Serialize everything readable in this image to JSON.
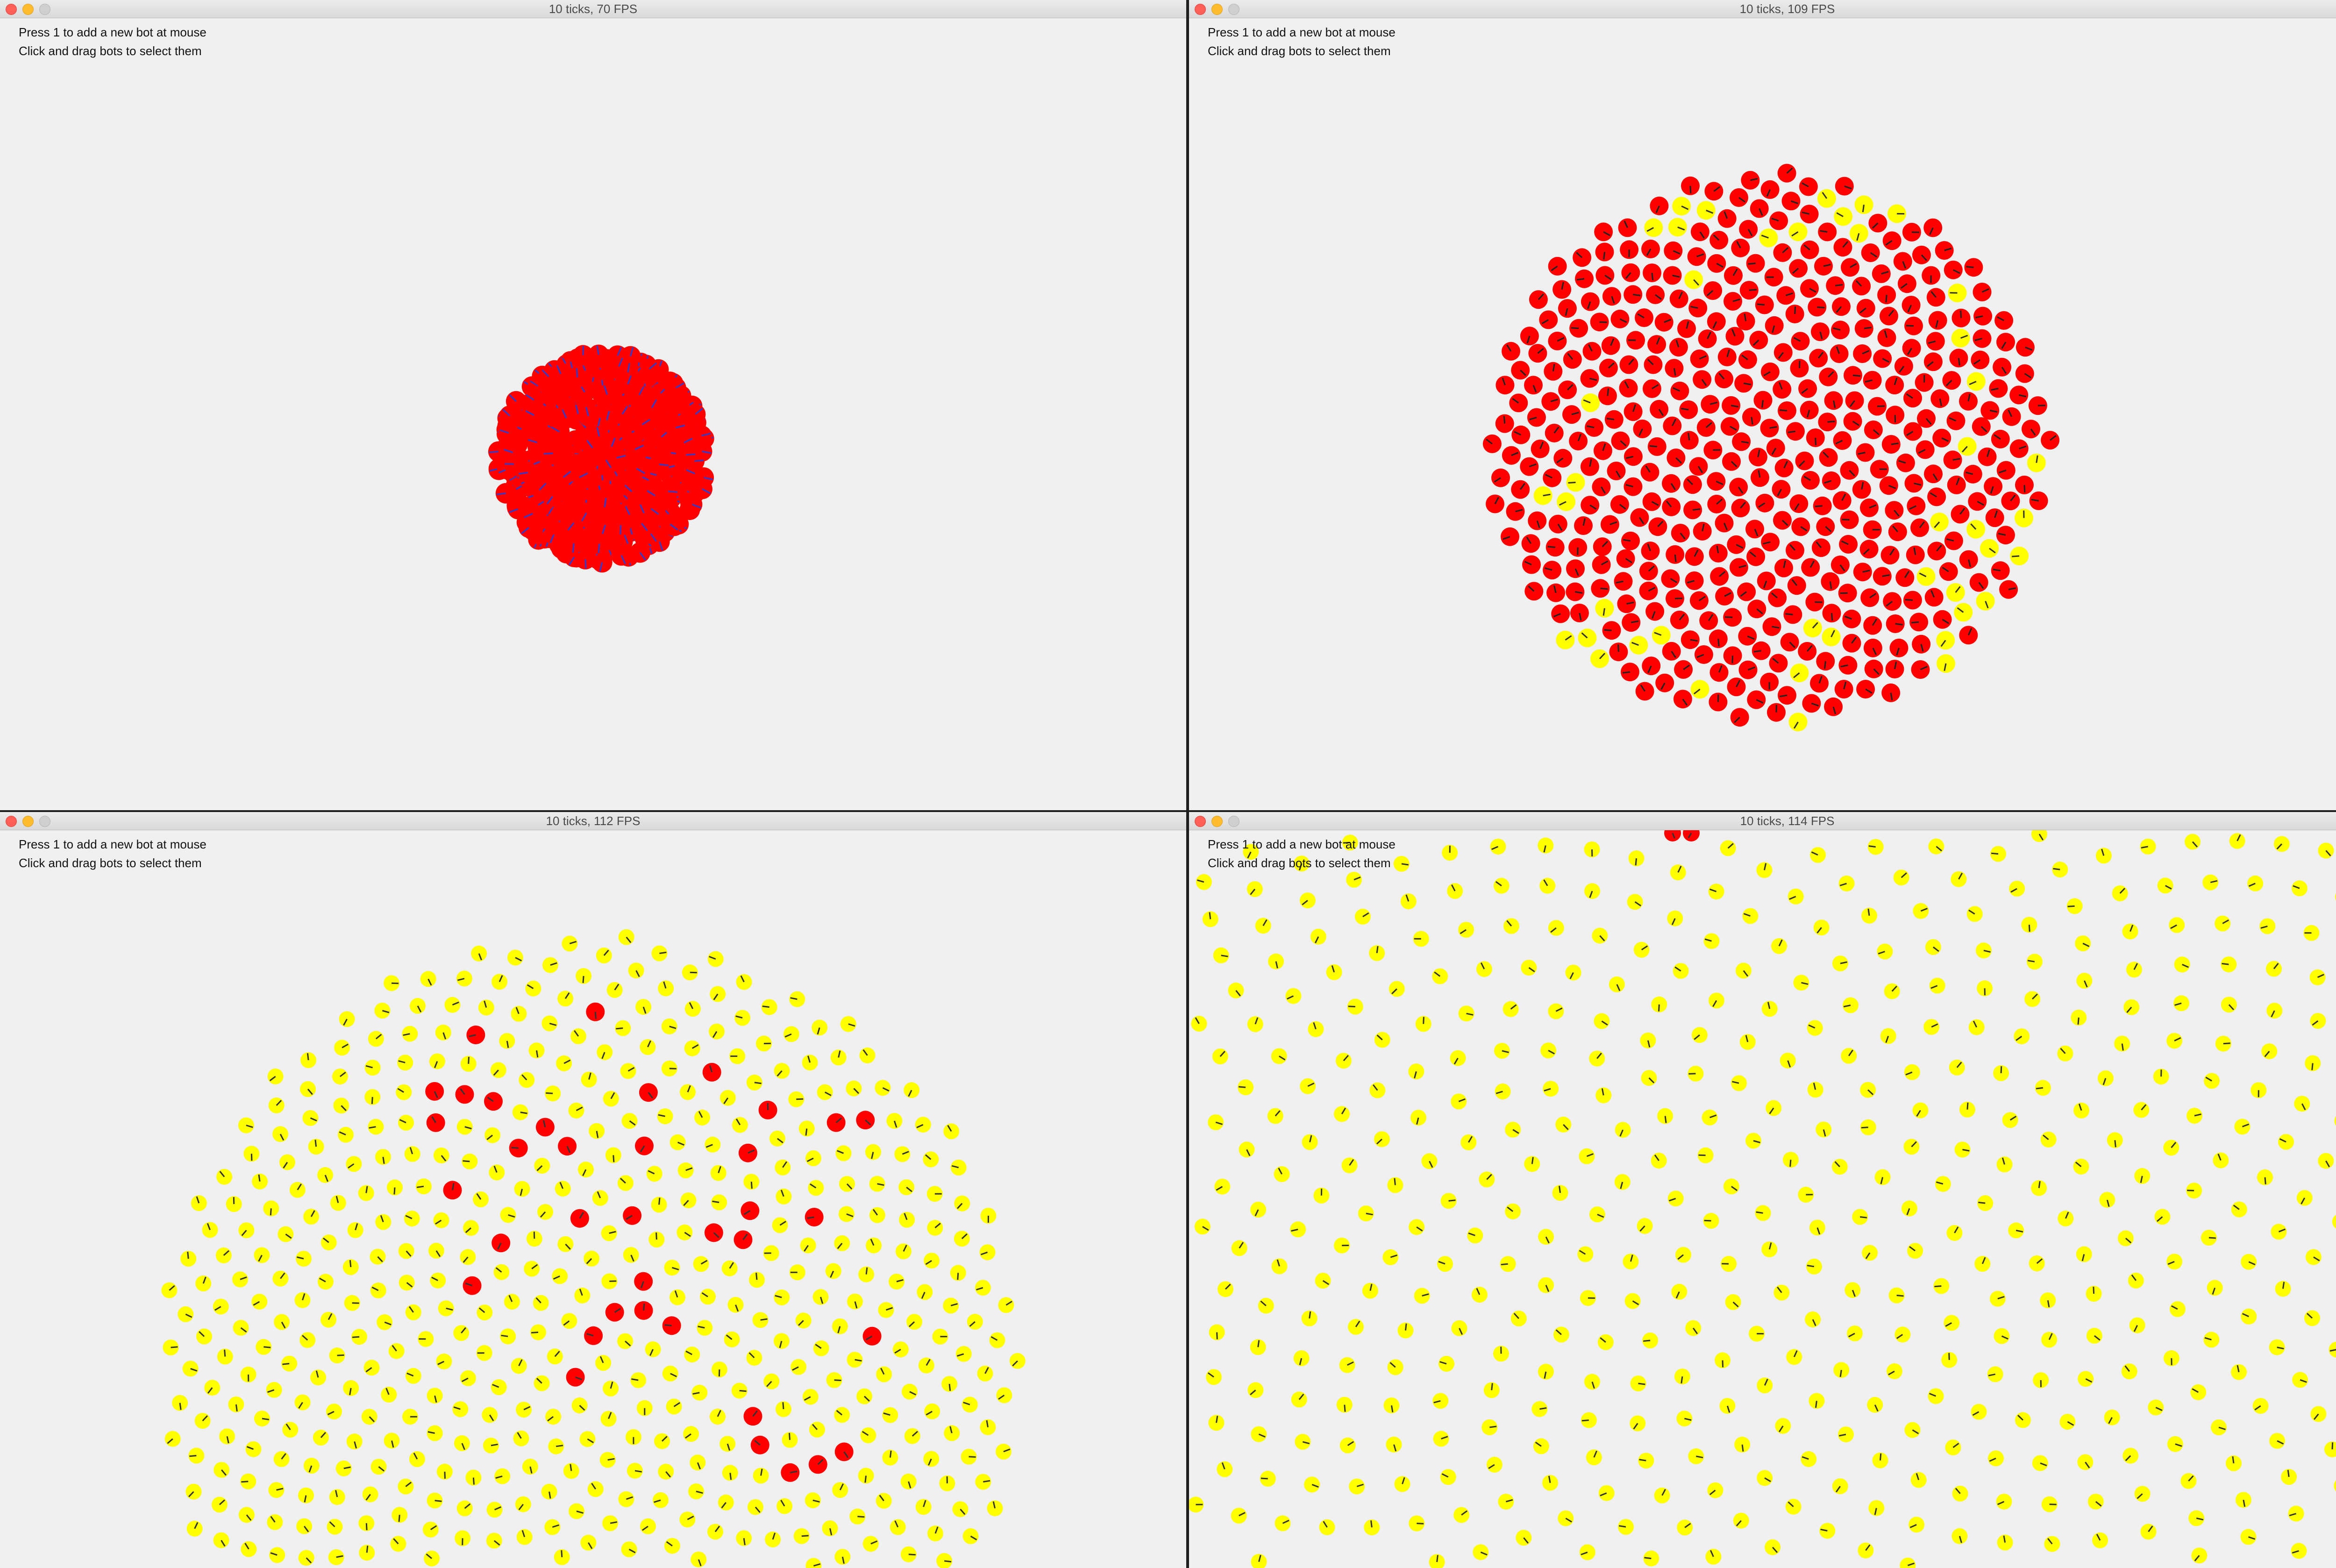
{
  "colors": {
    "window_bg": "#f0f0f0",
    "bot_idle": "#ff0000",
    "bot_selected": "#ffff00",
    "heading_on_red": "#2a3dd1",
    "heading_on_yellow": "#333333"
  },
  "windows": [
    {
      "title": "10 ticks, 70 FPS",
      "help_lines": [
        "Press 1 to add a new bot at mouse",
        "Click and drag bots to select them"
      ],
      "state": "clustered"
    },
    {
      "title": "10 ticks, 109 FPS",
      "help_lines": [
        "Press 1 to add a new bot at mouse",
        "Click and drag bots to select them"
      ],
      "state": "spreading"
    },
    {
      "title": "10 ticks, 112 FPS",
      "help_lines": [
        "Press 1 to add a new bot at mouse",
        "Click and drag bots to select them"
      ],
      "state": "mostly-selected"
    },
    {
      "title": "10 ticks, 114 FPS",
      "help_lines": [
        "Press 1 to add a new bot at mouse",
        "Click and drag bots to select them"
      ],
      "state": "all-selected"
    }
  ]
}
